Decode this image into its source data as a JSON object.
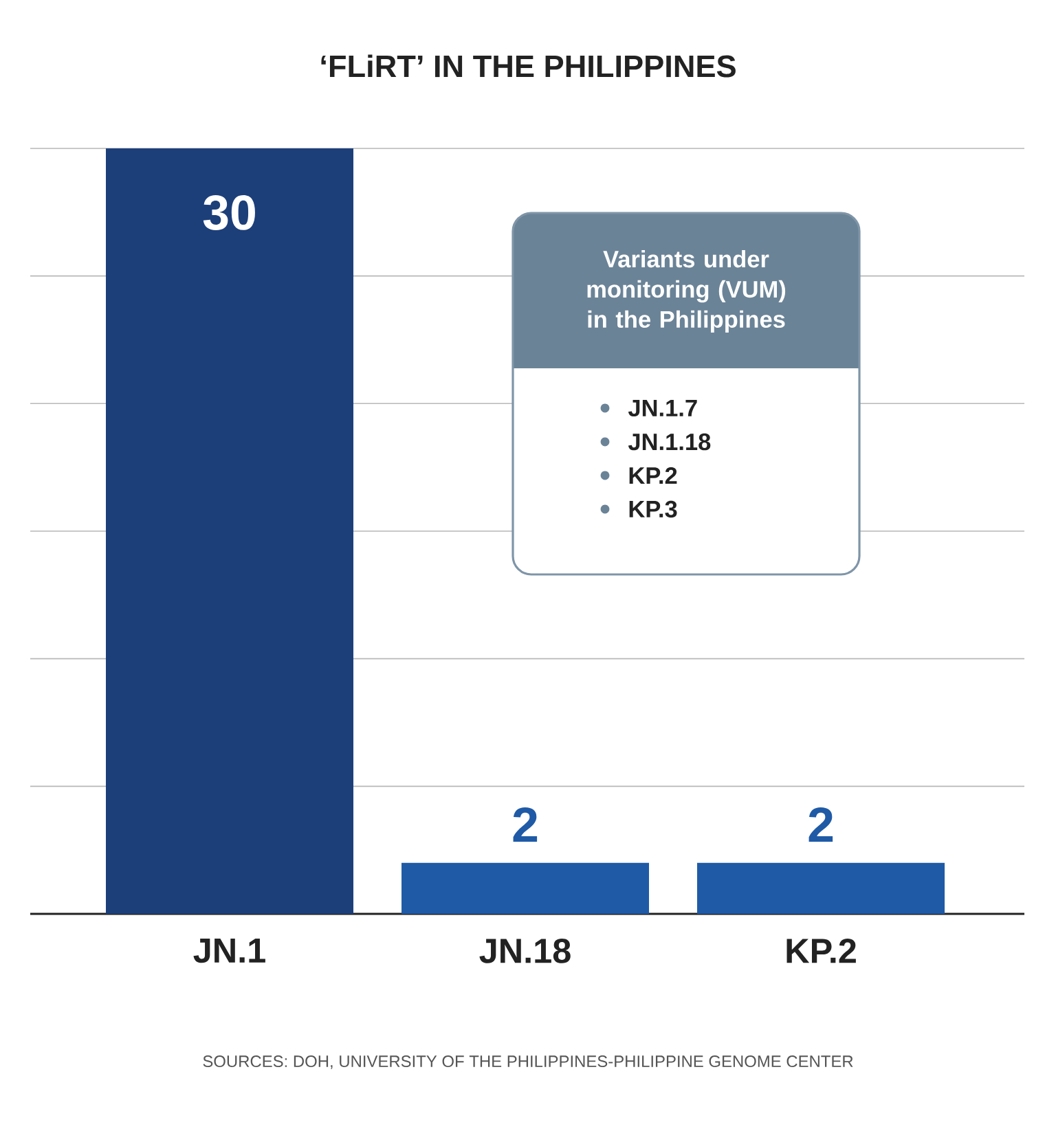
{
  "chart_data": {
    "type": "bar",
    "title": "‘FLiRT’ IN THE PHILIPPINES",
    "categories": [
      "JN.1",
      "JN.18",
      "KP.2"
    ],
    "values": [
      30,
      2,
      2
    ],
    "colors": [
      "#1c3f7a",
      "#1f5aa6",
      "#1f5aa6"
    ],
    "ylim": [
      0,
      30
    ],
    "yticks": [
      {
        "value": 0,
        "label": null
      },
      {
        "value": 5,
        "label": null
      },
      {
        "value": 10,
        "label": null
      },
      {
        "value": 15,
        "label": null
      },
      {
        "value": 20,
        "label": null
      },
      {
        "value": 25,
        "label": null
      },
      {
        "value": 30,
        "label": null
      }
    ],
    "grid": "y",
    "tick_labels": "x",
    "data_labels": true,
    "annotations": [
      "Variants under monitoring (VUM) in the Philippines",
      "JN.1.7",
      "JN.1.18",
      "KP.2",
      "KP.3",
      "SOURCES: DOH, UNIVERSITY OF THE PHILIPPINES-PHILIPPINE GENOME CENTER"
    ]
  }
}
